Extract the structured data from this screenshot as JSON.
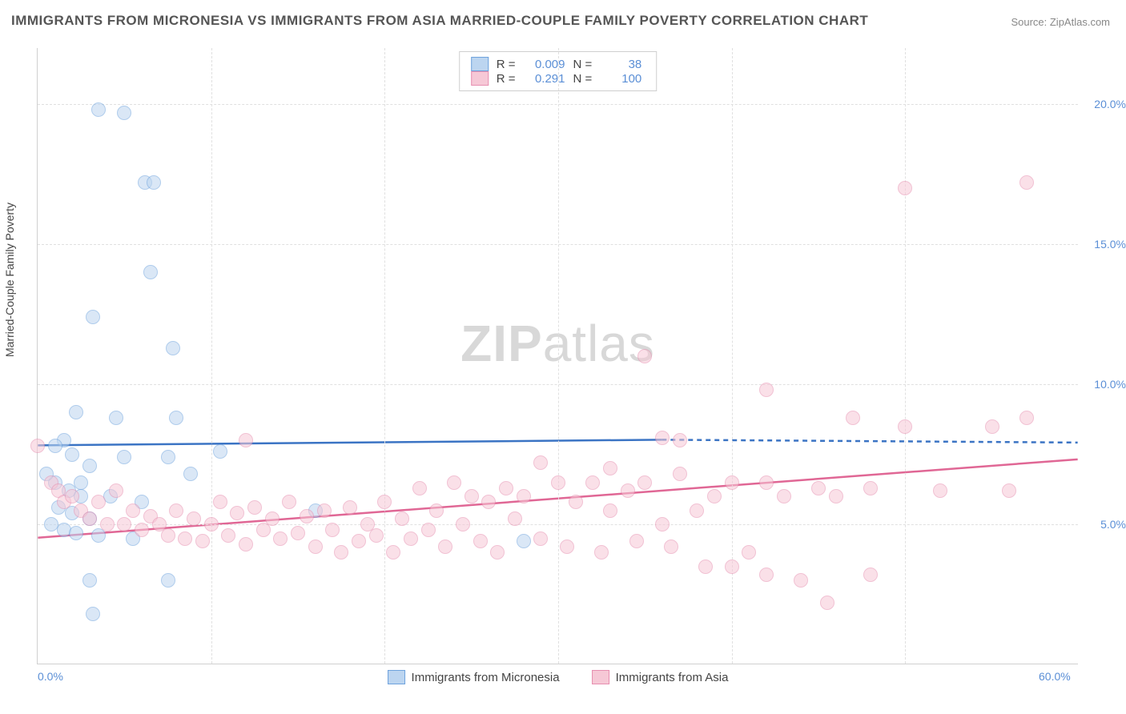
{
  "title": "IMMIGRANTS FROM MICRONESIA VS IMMIGRANTS FROM ASIA MARRIED-COUPLE FAMILY POVERTY CORRELATION CHART",
  "source": "Source: ZipAtlas.com",
  "watermark_bold": "ZIP",
  "watermark_rest": "atlas",
  "ylabel": "Married-Couple Family Poverty",
  "chart": {
    "type": "scatter",
    "xlim": [
      0,
      60
    ],
    "ylim": [
      0,
      22
    ],
    "xticks": [
      0,
      60
    ],
    "xtick_labels": [
      "0.0%",
      "60.0%"
    ],
    "yticks": [
      5,
      10,
      15,
      20
    ],
    "ytick_labels": [
      "5.0%",
      "10.0%",
      "15.0%",
      "20.0%"
    ],
    "x_grid_positions": [
      10,
      20,
      30,
      40,
      50
    ],
    "background_color": "#ffffff",
    "grid_color": "#e0e0e0",
    "point_radius": 9,
    "point_opacity": 0.55,
    "series": [
      {
        "name": "Immigrants from Micronesia",
        "fill": "#bcd5f0",
        "stroke": "#6fa3dd",
        "line_color": "#3b74c4",
        "R": "0.009",
        "N": "38",
        "trend": {
          "x1": 0,
          "y1": 7.8,
          "x2": 36,
          "y2": 8.0,
          "dash_from_x": 36,
          "dash_to_x": 60,
          "dash_y": 7.9
        },
        "points": [
          [
            3.5,
            19.8
          ],
          [
            5,
            19.7
          ],
          [
            6.2,
            17.2
          ],
          [
            6.7,
            17.2
          ],
          [
            3.2,
            12.4
          ],
          [
            6.5,
            14.0
          ],
          [
            7.8,
            11.3
          ],
          [
            2.2,
            9.0
          ],
          [
            4.5,
            8.8
          ],
          [
            8.0,
            8.8
          ],
          [
            1.5,
            8.0
          ],
          [
            2.0,
            7.5
          ],
          [
            3.0,
            7.1
          ],
          [
            5.0,
            7.4
          ],
          [
            7.5,
            7.4
          ],
          [
            1.0,
            6.5
          ],
          [
            1.8,
            6.2
          ],
          [
            2.5,
            6.0
          ],
          [
            4.2,
            6.0
          ],
          [
            6.0,
            5.8
          ],
          [
            10.5,
            7.6
          ],
          [
            8.8,
            6.8
          ],
          [
            1.2,
            5.6
          ],
          [
            2.0,
            5.4
          ],
          [
            3.0,
            5.2
          ],
          [
            0.8,
            5.0
          ],
          [
            1.5,
            4.8
          ],
          [
            2.2,
            4.7
          ],
          [
            3.5,
            4.6
          ],
          [
            5.5,
            4.5
          ],
          [
            16,
            5.5
          ],
          [
            3.0,
            3.0
          ],
          [
            3.2,
            1.8
          ],
          [
            7.5,
            3.0
          ],
          [
            0.5,
            6.8
          ],
          [
            1.0,
            7.8
          ],
          [
            2.5,
            6.5
          ],
          [
            28,
            4.4
          ]
        ]
      },
      {
        "name": "Immigrants from Asia",
        "fill": "#f6c8d6",
        "stroke": "#e78fb0",
        "line_color": "#e06795",
        "R": "0.291",
        "N": "100",
        "trend": {
          "x1": 0,
          "y1": 4.5,
          "x2": 60,
          "y2": 7.3
        },
        "points": [
          [
            0,
            7.8
          ],
          [
            0.8,
            6.5
          ],
          [
            1.2,
            6.2
          ],
          [
            1.5,
            5.8
          ],
          [
            2.0,
            6.0
          ],
          [
            2.5,
            5.5
          ],
          [
            3.0,
            5.2
          ],
          [
            3.5,
            5.8
          ],
          [
            4.0,
            5.0
          ],
          [
            4.5,
            6.2
          ],
          [
            5.0,
            5.0
          ],
          [
            5.5,
            5.5
          ],
          [
            6.0,
            4.8
          ],
          [
            6.5,
            5.3
          ],
          [
            7.0,
            5.0
          ],
          [
            7.5,
            4.6
          ],
          [
            8.0,
            5.5
          ],
          [
            8.5,
            4.5
          ],
          [
            9.0,
            5.2
          ],
          [
            9.5,
            4.4
          ],
          [
            10,
            5.0
          ],
          [
            10.5,
            5.8
          ],
          [
            11,
            4.6
          ],
          [
            11.5,
            5.4
          ],
          [
            12,
            4.3
          ],
          [
            12.5,
            5.6
          ],
          [
            13,
            4.8
          ],
          [
            13.5,
            5.2
          ],
          [
            14,
            4.5
          ],
          [
            14.5,
            5.8
          ],
          [
            15,
            4.7
          ],
          [
            15.5,
            5.3
          ],
          [
            16,
            4.2
          ],
          [
            16.5,
            5.5
          ],
          [
            17,
            4.8
          ],
          [
            17.5,
            4.0
          ],
          [
            18,
            5.6
          ],
          [
            18.5,
            4.4
          ],
          [
            19,
            5.0
          ],
          [
            19.5,
            4.6
          ],
          [
            20,
            5.8
          ],
          [
            20.5,
            4.0
          ],
          [
            21,
            5.2
          ],
          [
            21.5,
            4.5
          ],
          [
            22,
            6.3
          ],
          [
            22.5,
            4.8
          ],
          [
            23,
            5.5
          ],
          [
            23.5,
            4.2
          ],
          [
            24,
            6.5
          ],
          [
            24.5,
            5.0
          ],
          [
            25,
            6.0
          ],
          [
            25.5,
            4.4
          ],
          [
            26,
            5.8
          ],
          [
            26.5,
            4.0
          ],
          [
            27,
            6.3
          ],
          [
            27.5,
            5.2
          ],
          [
            28,
            6.0
          ],
          [
            29,
            4.5
          ],
          [
            30,
            6.5
          ],
          [
            30.5,
            4.2
          ],
          [
            31,
            5.8
          ],
          [
            32,
            6.5
          ],
          [
            32.5,
            4.0
          ],
          [
            33,
            5.5
          ],
          [
            34,
            6.2
          ],
          [
            34.5,
            4.4
          ],
          [
            35,
            6.5
          ],
          [
            36,
            5.0
          ],
          [
            36.5,
            4.2
          ],
          [
            37,
            6.8
          ],
          [
            38,
            5.5
          ],
          [
            38.5,
            3.5
          ],
          [
            39,
            6.0
          ],
          [
            40,
            6.5
          ],
          [
            41,
            4.0
          ],
          [
            42,
            9.8
          ],
          [
            43,
            6.0
          ],
          [
            44,
            3.0
          ],
          [
            45,
            6.3
          ],
          [
            45.5,
            2.2
          ],
          [
            42,
            3.2
          ],
          [
            35,
            11.0
          ],
          [
            33,
            7.0
          ],
          [
            29,
            7.2
          ],
          [
            12,
            8.0
          ],
          [
            47,
            8.8
          ],
          [
            50,
            8.5
          ],
          [
            52,
            6.2
          ],
          [
            55,
            8.5
          ],
          [
            56,
            6.2
          ],
          [
            57,
            8.8
          ],
          [
            50,
            17.0
          ],
          [
            57,
            17.2
          ],
          [
            40,
            3.5
          ],
          [
            48,
            3.2
          ],
          [
            46,
            6.0
          ],
          [
            48,
            6.3
          ],
          [
            42,
            6.5
          ],
          [
            37,
            8.0
          ],
          [
            36,
            8.1
          ]
        ]
      }
    ]
  },
  "legend_labels": {
    "R": "R =",
    "N": "N ="
  }
}
